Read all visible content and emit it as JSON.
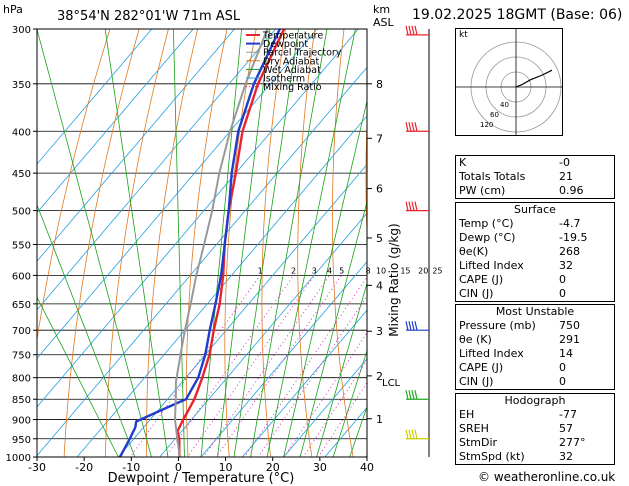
{
  "header": {
    "location": "38°54'N  282°01'W  71m  ASL",
    "date": "19.02.2025  18GMT  (Base: 06)",
    "hpa_label": "hPa",
    "km_label": "km",
    "asl_label": "ASL"
  },
  "chart_data": {
    "type": "line",
    "xlabel": "Dewpoint / Temperature (°C)",
    "ylabel": "Mixing Ratio (g/kg)",
    "pressure_levels": [
      300,
      350,
      400,
      450,
      500,
      550,
      600,
      650,
      700,
      750,
      800,
      850,
      900,
      950,
      1000
    ],
    "x_ticks": [
      -30,
      -20,
      -10,
      0,
      10,
      20,
      30,
      40
    ],
    "xlim": [
      -30,
      40
    ],
    "ylim": [
      1000,
      300
    ],
    "km_ticks": [
      {
        "km": "8",
        "p": 350
      },
      {
        "km": "7",
        "p": 408
      },
      {
        "km": "6",
        "p": 470
      },
      {
        "km": "5",
        "p": 540
      },
      {
        "km": "4",
        "p": 617
      },
      {
        "km": "3",
        "p": 702
      },
      {
        "km": "2",
        "p": 796
      },
      {
        "km": "1",
        "p": 898
      }
    ],
    "lcl": {
      "label": "LCL",
      "p": 810
    },
    "mixing_ratio_labels": [
      "1",
      "2",
      "3",
      "4",
      "5",
      "8",
      "10",
      "15",
      "20",
      "25"
    ],
    "legend": [
      "Temperature",
      "Dewpoint",
      "Parcel Trajectory",
      "Dry Adiabat",
      "Wet Adiabat",
      "Isotherm",
      "Mixing Ratio"
    ],
    "colors": {
      "temperature": "#e8232e",
      "dewpoint": "#1f3ccc",
      "parcel": "#999999",
      "dry_adiabat": "#e07820",
      "wet_adiabat": "#1aa01a",
      "isotherm": "#22a0e0",
      "mixing_ratio": "#d020b0"
    },
    "series": [
      {
        "name": "Temperature",
        "points": [
          [
            1005,
            -4.7
          ],
          [
            990,
            -6
          ],
          [
            950,
            -9
          ],
          [
            930,
            -11
          ],
          [
            900,
            -12
          ],
          [
            850,
            -13.5
          ],
          [
            800,
            -16
          ],
          [
            750,
            -19
          ],
          [
            700,
            -23
          ],
          [
            650,
            -27
          ],
          [
            600,
            -32
          ],
          [
            550,
            -38
          ],
          [
            500,
            -44
          ],
          [
            450,
            -50
          ],
          [
            400,
            -57
          ],
          [
            350,
            -63
          ],
          [
            300,
            -68
          ]
        ]
      },
      {
        "name": "Dewpoint",
        "points": [
          [
            1005,
            -19.5
          ],
          [
            950,
            -21
          ],
          [
            920,
            -22
          ],
          [
            905,
            -23
          ],
          [
            860,
            -17
          ],
          [
            850,
            -15.5
          ],
          [
            800,
            -17
          ],
          [
            750,
            -20
          ],
          [
            700,
            -24
          ],
          [
            650,
            -28
          ],
          [
            600,
            -32.5
          ],
          [
            550,
            -38
          ],
          [
            500,
            -44
          ],
          [
            450,
            -51
          ],
          [
            400,
            -58
          ],
          [
            350,
            -64
          ],
          [
            300,
            -69
          ]
        ]
      },
      {
        "name": "Parcel Trajectory",
        "points": [
          [
            1005,
            -4.7
          ],
          [
            950,
            -9.5
          ],
          [
            900,
            -14
          ],
          [
            850,
            -18
          ],
          [
            810,
            -21.5
          ],
          [
            750,
            -26
          ],
          [
            700,
            -30
          ],
          [
            650,
            -34
          ],
          [
            600,
            -38.5
          ],
          [
            550,
            -43
          ],
          [
            500,
            -48
          ],
          [
            450,
            -54
          ],
          [
            400,
            -60
          ],
          [
            350,
            -66
          ],
          [
            300,
            -72
          ]
        ]
      }
    ]
  },
  "wind_barbs": [
    {
      "p": 305,
      "color": "#e8232e"
    },
    {
      "p": 400,
      "color": "#e8232e"
    },
    {
      "p": 500,
      "color": "#e8232e"
    },
    {
      "p": 700,
      "color": "#1f3ccc"
    },
    {
      "p": 850,
      "color": "#22aa22"
    },
    {
      "p": 950,
      "color": "#cccc00"
    }
  ],
  "hodograph": {
    "label": "kt",
    "rings": [
      "40",
      "60",
      "120"
    ],
    "trace": [
      [
        0,
        0
      ],
      [
        5,
        2
      ],
      [
        12,
        6
      ],
      [
        22,
        10
      ],
      [
        30,
        14
      ]
    ]
  },
  "indices": [
    {
      "label": "K",
      "value": "-0"
    },
    {
      "label": "Totals Totals",
      "value": "21"
    },
    {
      "label": "PW (cm)",
      "value": "0.96"
    }
  ],
  "surface": {
    "title": "Surface",
    "rows": [
      {
        "label": "Temp (°C)",
        "value": "-4.7"
      },
      {
        "label": "Dewp (°C)",
        "value": "-19.5"
      },
      {
        "label": "θe(K)",
        "value": "268"
      },
      {
        "label": "Lifted Index",
        "value": "32"
      },
      {
        "label": "CAPE (J)",
        "value": "0"
      },
      {
        "label": "CIN (J)",
        "value": "0"
      }
    ]
  },
  "most_unstable": {
    "title": "Most Unstable",
    "rows": [
      {
        "label": "Pressure (mb)",
        "value": "750"
      },
      {
        "label": "θe (K)",
        "value": "291"
      },
      {
        "label": "Lifted Index",
        "value": "14"
      },
      {
        "label": "CAPE (J)",
        "value": "0"
      },
      {
        "label": "CIN (J)",
        "value": "0"
      }
    ]
  },
  "hodo_table": {
    "title": "Hodograph",
    "rows": [
      {
        "label": "EH",
        "value": "-77"
      },
      {
        "label": "SREH",
        "value": "57"
      },
      {
        "label": "StmDir",
        "value": "277°"
      },
      {
        "label": "StmSpd (kt)",
        "value": "32"
      }
    ]
  },
  "credit": "© weatheronline.co.uk"
}
